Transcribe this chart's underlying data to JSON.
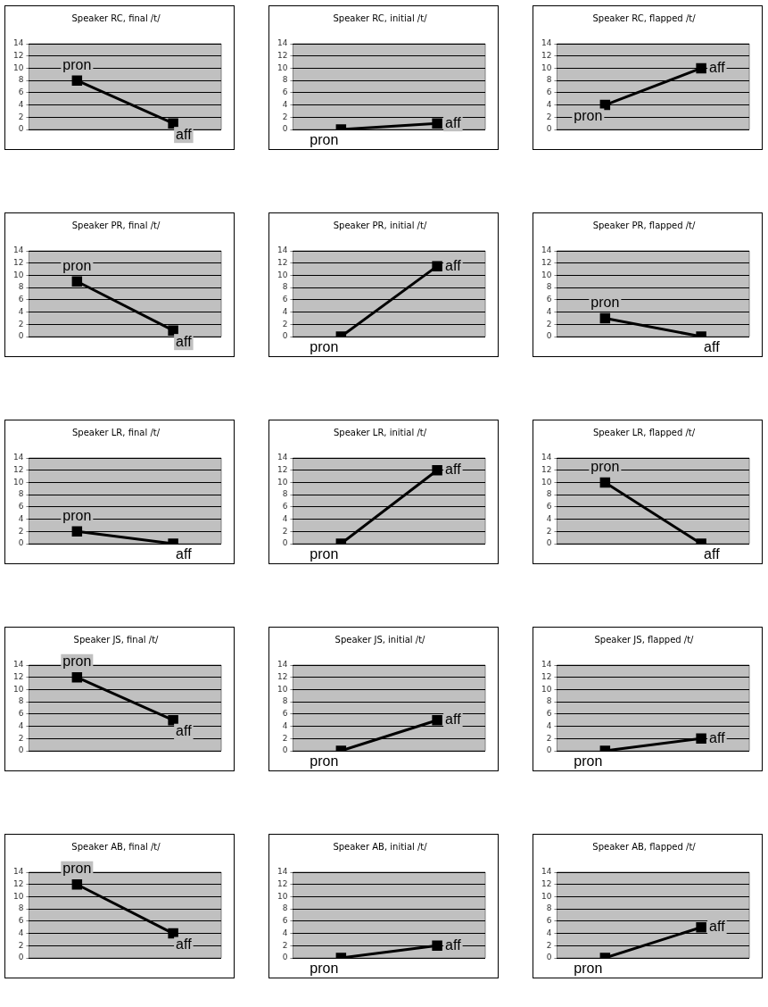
{
  "chart_data": [
    {
      "type": "line",
      "title": "Speaker RC, final /t/",
      "categories": [
        "pron",
        "aff"
      ],
      "values": [
        8,
        1
      ],
      "color": "#000000",
      "ylim": [
        0,
        14
      ],
      "yticks": [
        0,
        2,
        4,
        6,
        8,
        10,
        12,
        14
      ],
      "grid": "y",
      "marker": "square",
      "tick_labels": "y"
    },
    {
      "type": "line",
      "title": "Speaker RC, initial /t/",
      "categories": [
        "pron",
        "aff"
      ],
      "values": [
        0,
        1
      ],
      "color": "#000000",
      "ylim": [
        0,
        14
      ],
      "yticks": [
        0,
        2,
        4,
        6,
        8,
        10,
        12,
        14
      ],
      "grid": "y",
      "marker": "square",
      "tick_labels": "y"
    },
    {
      "type": "line",
      "title": "Speaker RC, flapped /t/",
      "categories": [
        "pron",
        "aff"
      ],
      "values": [
        4,
        10
      ],
      "color": "#000000",
      "ylim": [
        0,
        14
      ],
      "yticks": [
        0,
        2,
        4,
        6,
        8,
        10,
        12,
        14
      ],
      "grid": "y",
      "marker": "square",
      "tick_labels": "y"
    },
    {
      "type": "line",
      "title": "Speaker PR, final /t/",
      "categories": [
        "pron",
        "aff"
      ],
      "values": [
        9,
        1
      ],
      "color": "#000000",
      "ylim": [
        0,
        14
      ],
      "yticks": [
        0,
        2,
        4,
        6,
        8,
        10,
        12,
        14
      ],
      "grid": "y",
      "marker": "square",
      "tick_labels": "y"
    },
    {
      "type": "line",
      "title": "Speaker PR, initial /t/",
      "categories": [
        "pron",
        "aff"
      ],
      "values": [
        0,
        11.5
      ],
      "color": "#000000",
      "ylim": [
        0,
        14
      ],
      "yticks": [
        0,
        2,
        4,
        6,
        8,
        10,
        12,
        14
      ],
      "grid": "y",
      "marker": "square",
      "tick_labels": "y"
    },
    {
      "type": "line",
      "title": "Speaker PR, flapped /t/",
      "categories": [
        "pron",
        "aff"
      ],
      "values": [
        3,
        0
      ],
      "color": "#000000",
      "ylim": [
        0,
        14
      ],
      "yticks": [
        0,
        2,
        4,
        6,
        8,
        10,
        12,
        14
      ],
      "grid": "y",
      "marker": "square",
      "tick_labels": "y"
    },
    {
      "type": "line",
      "title": "Speaker LR, final /t/",
      "categories": [
        "pron",
        "aff"
      ],
      "values": [
        2,
        0
      ],
      "color": "#000000",
      "ylim": [
        0,
        14
      ],
      "yticks": [
        0,
        2,
        4,
        6,
        8,
        10,
        12,
        14
      ],
      "grid": "y",
      "marker": "square",
      "tick_labels": "y"
    },
    {
      "type": "line",
      "title": "Speaker LR, initial /t/",
      "categories": [
        "pron",
        "aff"
      ],
      "values": [
        0,
        12
      ],
      "color": "#000000",
      "ylim": [
        0,
        14
      ],
      "yticks": [
        0,
        2,
        4,
        6,
        8,
        10,
        12,
        14
      ],
      "grid": "y",
      "marker": "square",
      "tick_labels": "y"
    },
    {
      "type": "line",
      "title": "Speaker LR, flapped /t/",
      "categories": [
        "pron",
        "aff"
      ],
      "values": [
        10,
        0
      ],
      "color": "#000000",
      "ylim": [
        0,
        14
      ],
      "yticks": [
        0,
        2,
        4,
        6,
        8,
        10,
        12,
        14
      ],
      "grid": "y",
      "marker": "square",
      "tick_labels": "y"
    },
    {
      "type": "line",
      "title": "Speaker JS, final /t/",
      "categories": [
        "pron",
        "aff"
      ],
      "values": [
        12,
        5
      ],
      "color": "#000000",
      "ylim": [
        0,
        14
      ],
      "yticks": [
        0,
        2,
        4,
        6,
        8,
        10,
        12,
        14
      ],
      "grid": "y",
      "marker": "square",
      "tick_labels": "y"
    },
    {
      "type": "line",
      "title": "Speaker JS, initial /t/",
      "categories": [
        "pron",
        "aff"
      ],
      "values": [
        0,
        5
      ],
      "color": "#000000",
      "ylim": [
        0,
        14
      ],
      "yticks": [
        0,
        2,
        4,
        6,
        8,
        10,
        12,
        14
      ],
      "grid": "y",
      "marker": "square",
      "tick_labels": "y"
    },
    {
      "type": "line",
      "title": "Speaker JS, flapped /t/",
      "categories": [
        "pron",
        "aff"
      ],
      "values": [
        0,
        2
      ],
      "color": "#000000",
      "ylim": [
        0,
        14
      ],
      "yticks": [
        0,
        2,
        4,
        6,
        8,
        10,
        12,
        14
      ],
      "grid": "y",
      "marker": "square",
      "tick_labels": "y"
    },
    {
      "type": "line",
      "title": "Speaker AB, final /t/",
      "categories": [
        "pron",
        "aff"
      ],
      "values": [
        12,
        4
      ],
      "color": "#000000",
      "ylim": [
        0,
        14
      ],
      "yticks": [
        0,
        2,
        4,
        6,
        8,
        10,
        12,
        14
      ],
      "grid": "y",
      "marker": "square",
      "tick_labels": "y"
    },
    {
      "type": "line",
      "title": "Speaker AB, initial /t/",
      "categories": [
        "pron",
        "aff"
      ],
      "values": [
        0,
        2
      ],
      "color": "#000000",
      "ylim": [
        0,
        14
      ],
      "yticks": [
        0,
        2,
        4,
        6,
        8,
        10,
        12,
        14
      ],
      "grid": "y",
      "marker": "square",
      "tick_labels": "y"
    },
    {
      "type": "line",
      "title": "Speaker AB, flapped /t/",
      "categories": [
        "pron",
        "aff"
      ],
      "values": [
        0,
        5
      ],
      "color": "#000000",
      "ylim": [
        0,
        14
      ],
      "yticks": [
        0,
        2,
        4,
        6,
        8,
        10,
        12,
        14
      ],
      "grid": "y",
      "marker": "square",
      "tick_labels": "y"
    }
  ]
}
